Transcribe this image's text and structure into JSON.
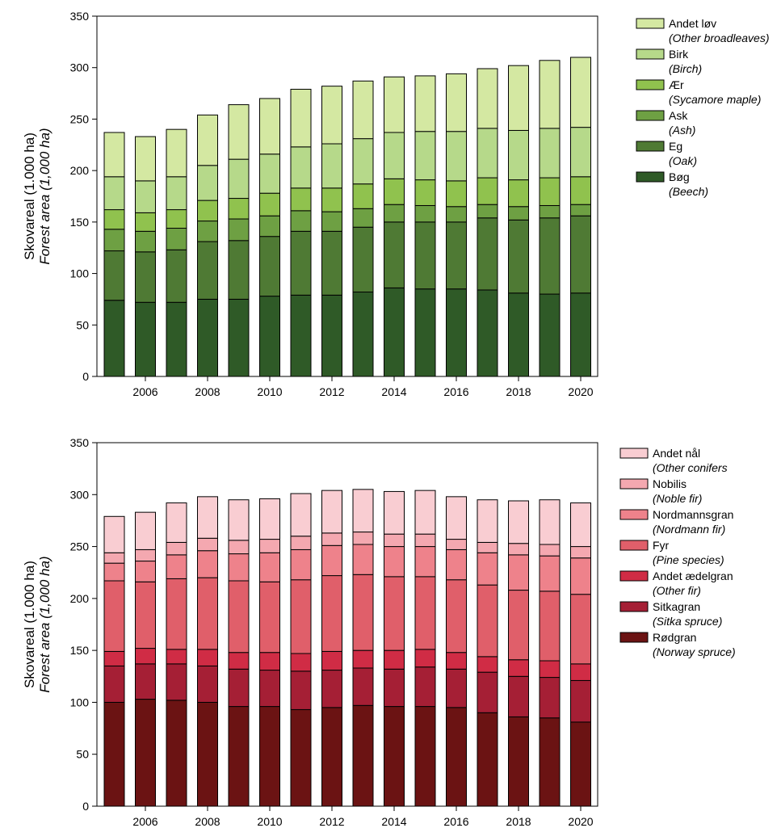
{
  "chart_data": [
    {
      "type": "bar",
      "stacked": true,
      "ylabel": "Skovareal (1.000 ha)",
      "ylabel_italic": "Forest area (1,000 ha)",
      "ylim": [
        0,
        350
      ],
      "yticks": [
        0,
        50,
        100,
        150,
        200,
        250,
        300,
        350
      ],
      "xticks": [
        "2006",
        "2008",
        "2010",
        "2012",
        "2014",
        "2016",
        "2018",
        "2020"
      ],
      "categories": [
        2005,
        2006,
        2007,
        2008,
        2009,
        2010,
        2011,
        2012,
        2013,
        2014,
        2015,
        2016,
        2017,
        2018,
        2019,
        2020
      ],
      "legend_position": "right",
      "series": [
        {
          "name": "Bøg",
          "name_italic": "(Beech)",
          "color": "#2f5a27",
          "values": [
            74,
            72,
            72,
            75,
            75,
            78,
            79,
            79,
            82,
            86,
            85,
            85,
            84,
            81,
            80,
            81
          ]
        },
        {
          "name": "Eg",
          "name_italic": "(Oak)",
          "color": "#4f7a34",
          "values": [
            48,
            49,
            51,
            56,
            57,
            58,
            62,
            62,
            63,
            64,
            65,
            65,
            70,
            71,
            74,
            75
          ]
        },
        {
          "name": "Ask",
          "name_italic": "(Ash)",
          "color": "#6ea043",
          "values": [
            21,
            20,
            21,
            20,
            21,
            20,
            20,
            19,
            18,
            17,
            16,
            15,
            13,
            13,
            12,
            11
          ]
        },
        {
          "name": "Ær",
          "name_italic": "(Sycamore maple)",
          "color": "#90c24e",
          "values": [
            19,
            18,
            18,
            20,
            20,
            22,
            22,
            23,
            24,
            25,
            25,
            25,
            26,
            26,
            27,
            27
          ]
        },
        {
          "name": "Birk",
          "name_italic": "(Birch)",
          "color": "#b6d98a",
          "values": [
            32,
            31,
            32,
            34,
            38,
            38,
            40,
            43,
            44,
            45,
            47,
            48,
            48,
            48,
            48,
            48
          ]
        },
        {
          "name": "Andet løv",
          "name_italic": "(Other broadleaves)",
          "color": "#d4e8a2",
          "values": [
            43,
            43,
            46,
            49,
            53,
            54,
            56,
            56,
            56,
            54,
            54,
            56,
            58,
            63,
            66,
            68
          ]
        }
      ]
    },
    {
      "type": "bar",
      "stacked": true,
      "ylabel": "Skovareal (1.000 ha)",
      "ylabel_italic": "Forest area (1,000 ha)",
      "ylim": [
        0,
        350
      ],
      "yticks": [
        0,
        50,
        100,
        150,
        200,
        250,
        300,
        350
      ],
      "xticks": [
        "2006",
        "2008",
        "2010",
        "2012",
        "2014",
        "2016",
        "2018",
        "2020"
      ],
      "categories": [
        2005,
        2006,
        2007,
        2008,
        2009,
        2010,
        2011,
        2012,
        2013,
        2014,
        2015,
        2016,
        2017,
        2018,
        2019,
        2020
      ],
      "legend_position": "right",
      "series": [
        {
          "name": "Rødgran",
          "name_italic": "(Norway spruce)",
          "color": "#6b1313",
          "values": [
            100,
            103,
            102,
            100,
            96,
            96,
            93,
            95,
            97,
            96,
            96,
            95,
            90,
            86,
            85,
            81
          ]
        },
        {
          "name": "Sitkagran",
          "name_italic": "(Sitka spruce)",
          "color": "#a51f35",
          "values": [
            35,
            34,
            35,
            35,
            36,
            35,
            37,
            36,
            36,
            36,
            38,
            37,
            39,
            39,
            39,
            40
          ]
        },
        {
          "name": "Andet ædelgran",
          "name_italic": "(Other fir)",
          "color": "#d02c45",
          "values": [
            14,
            15,
            14,
            16,
            16,
            17,
            17,
            18,
            17,
            18,
            17,
            16,
            15,
            16,
            16,
            16
          ]
        },
        {
          "name": "Fyr",
          "name_italic": "(Pine species)",
          "color": "#e05f6a",
          "values": [
            68,
            64,
            68,
            69,
            69,
            68,
            71,
            73,
            73,
            71,
            70,
            70,
            69,
            67,
            67,
            67
          ]
        },
        {
          "name": "Nordmannsgran",
          "name_italic": "(Nordmann fir)",
          "color": "#ee828b",
          "values": [
            17,
            20,
            23,
            26,
            26,
            28,
            29,
            29,
            29,
            29,
            29,
            29,
            31,
            34,
            34,
            35
          ]
        },
        {
          "name": "Nobilis",
          "name_italic": "(Noble fir)",
          "color": "#f4a8b0",
          "values": [
            10,
            11,
            12,
            12,
            13,
            13,
            13,
            12,
            12,
            12,
            12,
            10,
            10,
            11,
            11,
            11
          ]
        },
        {
          "name": "Andet nål",
          "name_italic": "(Other conifers",
          "color": "#f9cdd2",
          "values": [
            35,
            36,
            38,
            40,
            39,
            39,
            41,
            41,
            41,
            41,
            42,
            41,
            41,
            41,
            43,
            42
          ]
        }
      ]
    }
  ]
}
